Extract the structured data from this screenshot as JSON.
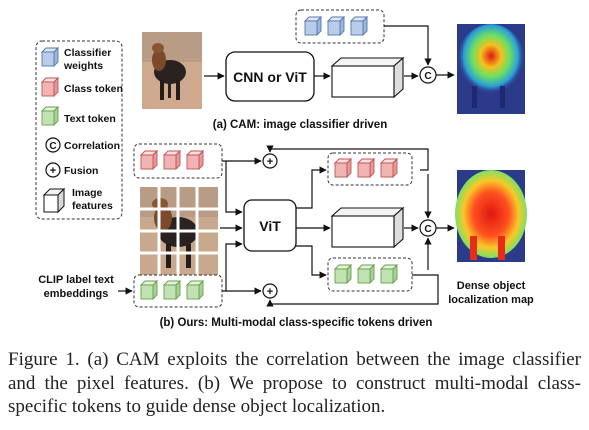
{
  "legend": {
    "classifier_weights": [
      "Classifier",
      "weights"
    ],
    "class_token": "Class token",
    "text_token": "Text token",
    "correlation": "Correlation",
    "correlation_symbol": "C",
    "fusion": "Fusion",
    "fusion_symbol": "+",
    "image_features": [
      "Image",
      "features"
    ]
  },
  "panel_a": {
    "backbone": "CNN or ViT",
    "caption": "(a) CAM: image classifier driven"
  },
  "panel_b": {
    "backbone": "ViT",
    "clip_label": [
      "CLIP label text",
      "embeddings"
    ],
    "output_label": [
      "Dense object",
      "localization map"
    ],
    "caption": "(b) Ours: Multi-modal class-specific tokens driven"
  },
  "figure_caption": "Figure 1.  (a) CAM exploits the correlation between the image classifier and the pixel features. (b) We propose to construct multi-modal class-specific tokens to guide dense object localization.",
  "colors": {
    "classifier_fill": "#b9cdea",
    "classifier_stroke": "#5577aa",
    "class_fill": "#f1b3b3",
    "class_stroke": "#c05555",
    "text_fill": "#c3e2b3",
    "text_stroke": "#66a050",
    "heat_background": "#2c3a8a"
  }
}
